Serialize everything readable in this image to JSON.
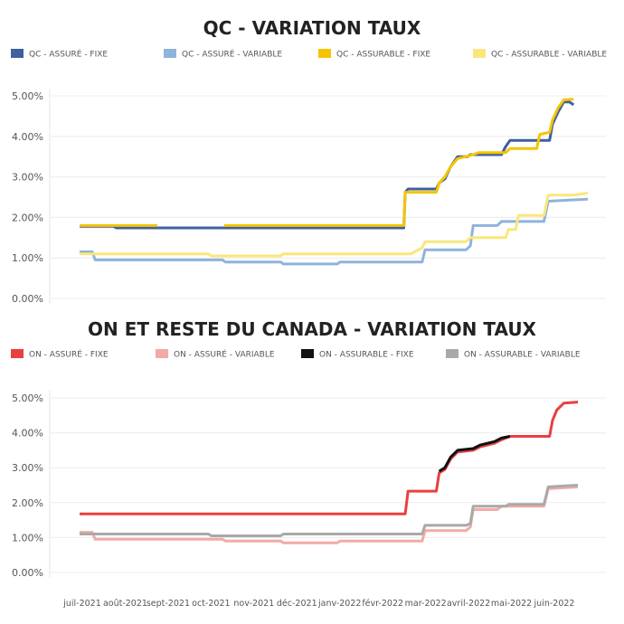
{
  "x_axis_labels": [
    "juil-2021",
    "août-2021",
    "sept-2021",
    "oct-2021",
    "nov-2021",
    "déc-2021",
    "janv-2022",
    "févr-2022",
    "mar-2022",
    "avril-2022",
    "mai-2022",
    "juin-2022"
  ],
  "chart_data": [
    {
      "type": "line",
      "title": "QC - VARIATION TAUX",
      "xlabel": "",
      "ylabel": "",
      "x_range": [
        "2021-07-01",
        "2022-06-25"
      ],
      "y_ticks": [
        "5.00%",
        "4.00%",
        "3.00%",
        "2.00%",
        "1.00%",
        "0.00%"
      ],
      "ylim": [
        0,
        5
      ],
      "grid": true,
      "legend_position": "top",
      "series": [
        {
          "name": "QC - ASSURÉ - FIXE",
          "color": "#3f5f9e",
          "points": [
            [
              "2021-07-01",
              1.78
            ],
            [
              "2021-07-25",
              1.78
            ],
            [
              "2021-07-27",
              1.74
            ],
            [
              "2022-02-15",
              1.74
            ],
            [
              "2022-02-16",
              2.62
            ],
            [
              "2022-02-18",
              2.7
            ],
            [
              "2022-03-10",
              2.7
            ],
            [
              "2022-03-12",
              2.85
            ],
            [
              "2022-03-16",
              2.95
            ],
            [
              "2022-03-20",
              3.25
            ],
            [
              "2022-03-25",
              3.5
            ],
            [
              "2022-04-01",
              3.5
            ],
            [
              "2022-04-03",
              3.55
            ],
            [
              "2022-04-25",
              3.55
            ],
            [
              "2022-04-28",
              3.75
            ],
            [
              "2022-05-01",
              3.9
            ],
            [
              "2022-05-29",
              3.9
            ],
            [
              "2022-05-31",
              4.3
            ],
            [
              "2022-06-04",
              4.6
            ],
            [
              "2022-06-08",
              4.85
            ],
            [
              "2022-06-12",
              4.85
            ],
            [
              "2022-06-15",
              4.78
            ]
          ]
        },
        {
          "name": "QC - ASSURÉ - VARIABLE",
          "color": "#8eb3dc",
          "points": [
            [
              "2021-07-01",
              1.15
            ],
            [
              "2021-07-10",
              1.15
            ],
            [
              "2021-07-12",
              0.95
            ],
            [
              "2021-10-10",
              0.95
            ],
            [
              "2021-10-12",
              0.9
            ],
            [
              "2021-11-20",
              0.9
            ],
            [
              "2021-11-22",
              0.85
            ],
            [
              "2021-12-30",
              0.85
            ],
            [
              "2022-01-01",
              0.9
            ],
            [
              "2022-02-28",
              0.9
            ],
            [
              "2022-03-02",
              1.2
            ],
            [
              "2022-03-31",
              1.2
            ],
            [
              "2022-04-03",
              1.3
            ],
            [
              "2022-04-05",
              1.8
            ],
            [
              "2022-04-22",
              1.8
            ],
            [
              "2022-04-25",
              1.9
            ],
            [
              "2022-05-25",
              1.9
            ],
            [
              "2022-05-28",
              2.4
            ],
            [
              "2022-06-25",
              2.45
            ]
          ]
        },
        {
          "name": "QC - ASSURABLE - FIXE",
          "color": "#f5c400",
          "points": [
            [
              "2021-07-01",
              1.8
            ],
            [
              "2021-08-25",
              1.8
            ],
            [
              "2021-08-26",
              null
            ],
            [
              "2021-10-10",
              null
            ],
            [
              "2021-10-11",
              1.8
            ],
            [
              "2022-02-15",
              1.8
            ],
            [
              "2022-02-16",
              2.62
            ],
            [
              "2022-03-10",
              2.62
            ],
            [
              "2022-03-12",
              2.85
            ],
            [
              "2022-03-16",
              3.0
            ],
            [
              "2022-03-20",
              3.25
            ],
            [
              "2022-03-25",
              3.45
            ],
            [
              "2022-04-05",
              3.55
            ],
            [
              "2022-04-09",
              3.6
            ],
            [
              "2022-04-28",
              3.6
            ],
            [
              "2022-05-01",
              3.7
            ],
            [
              "2022-05-20",
              3.7
            ],
            [
              "2022-05-22",
              4.05
            ],
            [
              "2022-05-29",
              4.1
            ],
            [
              "2022-05-31",
              4.4
            ],
            [
              "2022-06-04",
              4.7
            ],
            [
              "2022-06-08",
              4.9
            ],
            [
              "2022-06-15",
              4.92
            ]
          ]
        },
        {
          "name": "QC - ASSURABLE - VARIABLE",
          "color": "#fae77b",
          "points": [
            [
              "2021-07-01",
              1.1
            ],
            [
              "2021-09-30",
              1.1
            ],
            [
              "2021-10-02",
              1.05
            ],
            [
              "2021-11-20",
              1.05
            ],
            [
              "2021-11-22",
              1.1
            ],
            [
              "2022-02-20",
              1.1
            ],
            [
              "2022-02-28",
              1.25
            ],
            [
              "2022-03-02",
              1.4
            ],
            [
              "2022-03-31",
              1.4
            ],
            [
              "2022-04-03",
              1.5
            ],
            [
              "2022-04-28",
              1.5
            ],
            [
              "2022-04-30",
              1.7
            ],
            [
              "2022-05-05",
              1.7
            ],
            [
              "2022-05-07",
              2.05
            ],
            [
              "2022-05-25",
              2.05
            ],
            [
              "2022-05-28",
              2.55
            ],
            [
              "2022-06-15",
              2.55
            ],
            [
              "2022-06-25",
              2.6
            ]
          ]
        }
      ]
    },
    {
      "type": "line",
      "title": "ON ET RESTE DU CANADA - VARIATION TAUX",
      "xlabel": "",
      "ylabel": "",
      "x_range": [
        "2021-07-01",
        "2022-06-25"
      ],
      "y_ticks": [
        "5.00%",
        "4.00%",
        "3.00%",
        "2.00%",
        "1.00%",
        "0.00%"
      ],
      "ylim": [
        0,
        5
      ],
      "grid": true,
      "legend_position": "top",
      "series": [
        {
          "name": "ON - ASSURÉ - FIXE",
          "color": "#e8403f",
          "points": [
            [
              "2021-07-01",
              1.68
            ],
            [
              "2022-02-16",
              1.68
            ],
            [
              "2022-02-18",
              2.33
            ],
            [
              "2022-03-10",
              2.33
            ],
            [
              "2022-03-12",
              2.85
            ],
            [
              "2022-03-16",
              2.95
            ],
            [
              "2022-03-20",
              3.25
            ],
            [
              "2022-03-25",
              3.45
            ],
            [
              "2022-04-05",
              3.5
            ],
            [
              "2022-04-10",
              3.6
            ],
            [
              "2022-04-20",
              3.7
            ],
            [
              "2022-04-25",
              3.8
            ],
            [
              "2022-05-01",
              3.9
            ],
            [
              "2022-05-29",
              3.9
            ],
            [
              "2022-05-31",
              4.35
            ],
            [
              "2022-06-03",
              4.65
            ],
            [
              "2022-06-08",
              4.85
            ],
            [
              "2022-06-18",
              4.88
            ]
          ]
        },
        {
          "name": "ON - ASSURÉ - VARIABLE",
          "color": "#f2aaa6",
          "points": [
            [
              "2021-07-01",
              1.15
            ],
            [
              "2021-07-10",
              1.15
            ],
            [
              "2021-07-12",
              0.95
            ],
            [
              "2021-10-10",
              0.95
            ],
            [
              "2021-10-12",
              0.9
            ],
            [
              "2021-11-20",
              0.9
            ],
            [
              "2021-11-22",
              0.85
            ],
            [
              "2021-12-30",
              0.85
            ],
            [
              "2022-01-01",
              0.9
            ],
            [
              "2022-02-28",
              0.9
            ],
            [
              "2022-03-02",
              1.2
            ],
            [
              "2022-03-31",
              1.2
            ],
            [
              "2022-04-03",
              1.3
            ],
            [
              "2022-04-05",
              1.8
            ],
            [
              "2022-04-22",
              1.8
            ],
            [
              "2022-04-25",
              1.9
            ],
            [
              "2022-05-25",
              1.9
            ],
            [
              "2022-05-28",
              2.4
            ],
            [
              "2022-06-18",
              2.45
            ]
          ]
        },
        {
          "name": "ON - ASSURABLE - FIXE",
          "color": "#111111",
          "points": [
            [
              "2022-03-12",
              2.9
            ],
            [
              "2022-03-16",
              3.0
            ],
            [
              "2022-03-20",
              3.3
            ],
            [
              "2022-03-25",
              3.5
            ],
            [
              "2022-04-05",
              3.55
            ],
            [
              "2022-04-10",
              3.65
            ],
            [
              "2022-04-20",
              3.75
            ],
            [
              "2022-04-25",
              3.85
            ],
            [
              "2022-05-01",
              3.9
            ]
          ]
        },
        {
          "name": "ON - ASSURABLE - VARIABLE",
          "color": "#a9a9a9",
          "points": [
            [
              "2021-07-01",
              1.1
            ],
            [
              "2021-09-30",
              1.1
            ],
            [
              "2021-10-02",
              1.05
            ],
            [
              "2021-11-20",
              1.05
            ],
            [
              "2021-11-22",
              1.1
            ],
            [
              "2022-02-28",
              1.1
            ],
            [
              "2022-03-02",
              1.35
            ],
            [
              "2022-03-31",
              1.35
            ],
            [
              "2022-04-03",
              1.4
            ],
            [
              "2022-04-05",
              1.9
            ],
            [
              "2022-04-28",
              1.9
            ],
            [
              "2022-04-30",
              1.95
            ],
            [
              "2022-05-25",
              1.95
            ],
            [
              "2022-05-28",
              2.45
            ],
            [
              "2022-06-18",
              2.5
            ]
          ]
        }
      ]
    }
  ]
}
